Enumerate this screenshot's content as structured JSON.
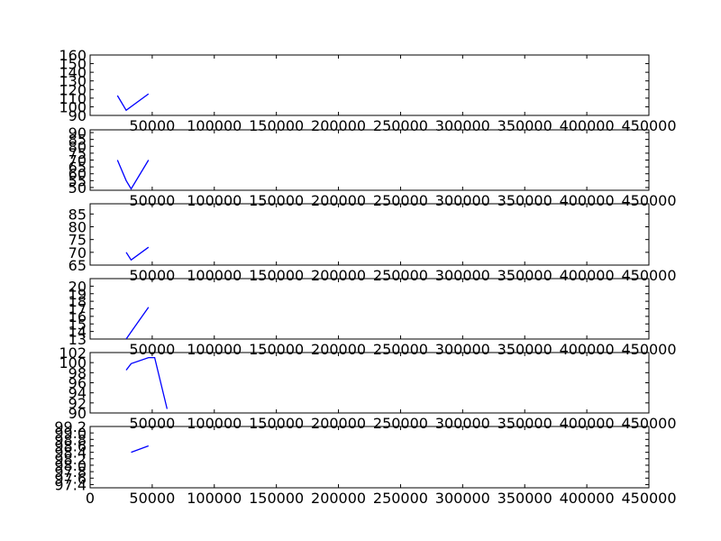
{
  "chart_data": [
    {
      "type": "line",
      "x_ticks": [
        "50000",
        "100000",
        "150000",
        "200000",
        "250000",
        "300000",
        "350000",
        "400000",
        "450000"
      ],
      "y_ticks": [
        "90",
        "100",
        "110",
        "120",
        "130",
        "140",
        "150",
        "160"
      ],
      "xlim": [
        0,
        450000
      ],
      "ylim": [
        90,
        160
      ],
      "color": "#0000ff",
      "series": [
        {
          "x": [
            22000,
            29000,
            47000
          ],
          "y": [
            113,
            96,
            115
          ]
        }
      ]
    },
    {
      "type": "line",
      "x_ticks": [
        "50000",
        "100000",
        "150000",
        "200000",
        "250000",
        "300000",
        "350000",
        "400000",
        "450000"
      ],
      "y_ticks": [
        "50",
        "55",
        "60",
        "65",
        "70",
        "75",
        "80",
        "85",
        "90"
      ],
      "xlim": [
        0,
        450000
      ],
      "ylim": [
        48,
        92
      ],
      "color": "#0000ff",
      "series": [
        {
          "x": [
            22000,
            29000,
            33000,
            47000
          ],
          "y": [
            70,
            55,
            49,
            70
          ]
        }
      ]
    },
    {
      "type": "line",
      "x_ticks": [
        "50000",
        "100000",
        "150000",
        "200000",
        "250000",
        "300000",
        "350000",
        "400000",
        "450000"
      ],
      "y_ticks": [
        "65",
        "70",
        "75",
        "80",
        "85"
      ],
      "xlim": [
        0,
        450000
      ],
      "ylim": [
        65,
        89
      ],
      "color": "#0000ff",
      "series": [
        {
          "x": [
            29000,
            33000,
            47000
          ],
          "y": [
            70,
            67,
            72
          ]
        }
      ]
    },
    {
      "type": "line",
      "x_ticks": [
        "50000",
        "100000",
        "150000",
        "200000",
        "250000",
        "300000",
        "350000",
        "400000",
        "450000"
      ],
      "y_ticks": [
        "13",
        "14",
        "15",
        "16",
        "17",
        "18",
        "19",
        "20"
      ],
      "xlim": [
        0,
        450000
      ],
      "ylim": [
        13,
        21
      ],
      "color": "#0000ff",
      "series": [
        {
          "x": [
            29000,
            35000,
            47000
          ],
          "y": [
            13,
            14.4,
            17.2
          ]
        }
      ]
    },
    {
      "type": "line",
      "x_ticks": [
        "50000",
        "100000",
        "150000",
        "200000",
        "250000",
        "300000",
        "350000",
        "400000",
        "450000"
      ],
      "y_ticks": [
        "90",
        "92",
        "94",
        "96",
        "98",
        "100",
        "102"
      ],
      "xlim": [
        0,
        450000
      ],
      "ylim": [
        90,
        102
      ],
      "color": "#0000ff",
      "series": [
        {
          "x": [
            29000,
            33000,
            47000,
            52000,
            62000
          ],
          "y": [
            98.5,
            99.8,
            101,
            101,
            90.8
          ]
        }
      ]
    },
    {
      "type": "line",
      "x_ticks": [
        "0",
        "50000",
        "100000",
        "150000",
        "200000",
        "250000",
        "300000",
        "350000",
        "400000",
        "450000"
      ],
      "y_ticks": [
        "97.4",
        "97.6",
        "97.8",
        "98.0",
        "98.2",
        "98.4",
        "98.6",
        "98.8",
        "99.0",
        "99.2"
      ],
      "xlim": [
        0,
        450000
      ],
      "ylim": [
        97.3,
        99.2
      ],
      "color": "#0000ff",
      "series": [
        {
          "x": [
            33000,
            47000
          ],
          "y": [
            98.4,
            98.6
          ]
        }
      ]
    }
  ]
}
